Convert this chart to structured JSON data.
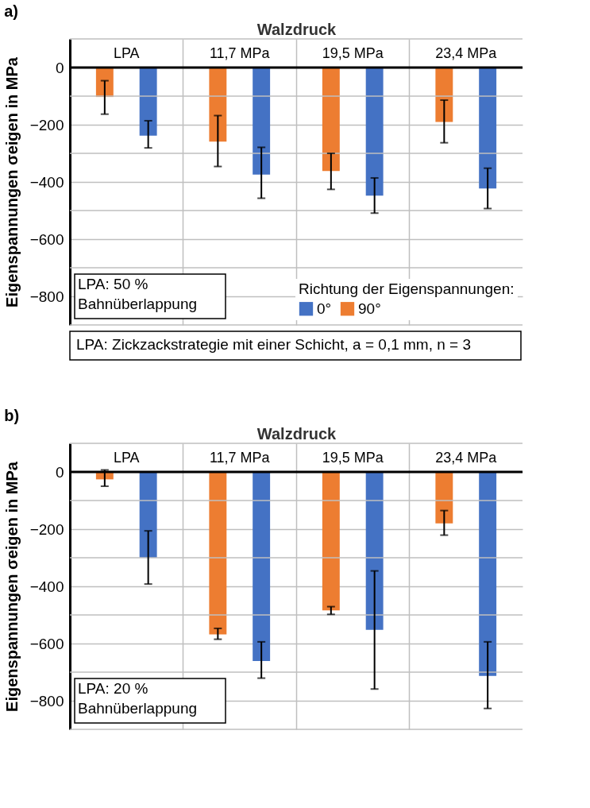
{
  "chart_data": [
    {
      "type": "bar",
      "title": "a)",
      "xlabel": "Walzdruck",
      "ylabel": "Eigenspannungen σeigen in MPa",
      "legend_title": "Richtung der Eigenspannungen:",
      "legend": "bottom right",
      "grid": true,
      "categories": [
        "LPA",
        "11,7 MPa",
        "19,5 MPa",
        "23,4 MPa"
      ],
      "series": [
        {
          "name": "0°",
          "color": "#4472c4",
          "values": [
            -238,
            -374,
            -448,
            -423
          ],
          "errors": [
            [
              -281,
              -186
            ],
            [
              -457,
              -279
            ],
            [
              -509,
              -386
            ],
            [
              -493,
              -352
            ]
          ]
        },
        {
          "name": "90°",
          "color": "#ed7d31",
          "values": [
            -103,
            -259,
            -362,
            -190
          ],
          "errors": [
            [
              -163,
              -46
            ],
            [
              -346,
              -168
            ],
            [
              -426,
              -300
            ],
            [
              -263,
              -114
            ]
          ]
        }
      ],
      "ylim": [
        -900,
        100
      ],
      "yticks": [
        {
          "value": -900,
          "label": null
        },
        -800,
        {
          "value": -700,
          "label": null
        },
        -600,
        {
          "value": -500,
          "label": null
        },
        -400,
        {
          "value": -300,
          "label": null
        },
        -200,
        {
          "value": -100,
          "label": null
        },
        0,
        {
          "value": 100,
          "label": null
        }
      ],
      "annotations": [
        "LPA: 50 %\nBahnüberlappung",
        "LPA: Zickzackstrategie mit einer Schicht, a = 0,1 mm, n = 3"
      ]
    },
    {
      "type": "bar",
      "title": "b)",
      "xlabel": "Walzdruck",
      "ylabel": "Eigenspannungen σeigen in MPa",
      "grid": true,
      "categories": [
        "LPA",
        "11,7 MPa",
        "19,5 MPa",
        "23,4 MPa"
      ],
      "series": [
        {
          "name": "0°",
          "color": "#4472c4",
          "values": [
            -300,
            -661,
            -552,
            -713
          ],
          "errors": [
            [
              -392,
              -206
            ],
            [
              -721,
              -594
            ],
            [
              -759,
              -346
            ],
            [
              -827,
              -594
            ]
          ]
        },
        {
          "name": "90°",
          "color": "#ed7d31",
          "values": [
            -26,
            -568,
            -484,
            -180
          ],
          "errors": [
            [
              -50,
              7
            ],
            [
              -585,
              -547
            ],
            [
              -498,
              -471
            ],
            [
              -221,
              -135
            ]
          ]
        }
      ],
      "ylim": [
        -900,
        100
      ],
      "yticks": [
        {
          "value": -900,
          "label": null
        },
        -800,
        {
          "value": -700,
          "label": null
        },
        -600,
        {
          "value": -500,
          "label": null
        },
        -400,
        {
          "value": -300,
          "label": null
        },
        -200,
        {
          "value": -100,
          "label": null
        },
        0,
        {
          "value": 100,
          "label": null
        }
      ],
      "annotations": [
        "LPA: 20 %\nBahnüberlappung"
      ]
    }
  ]
}
